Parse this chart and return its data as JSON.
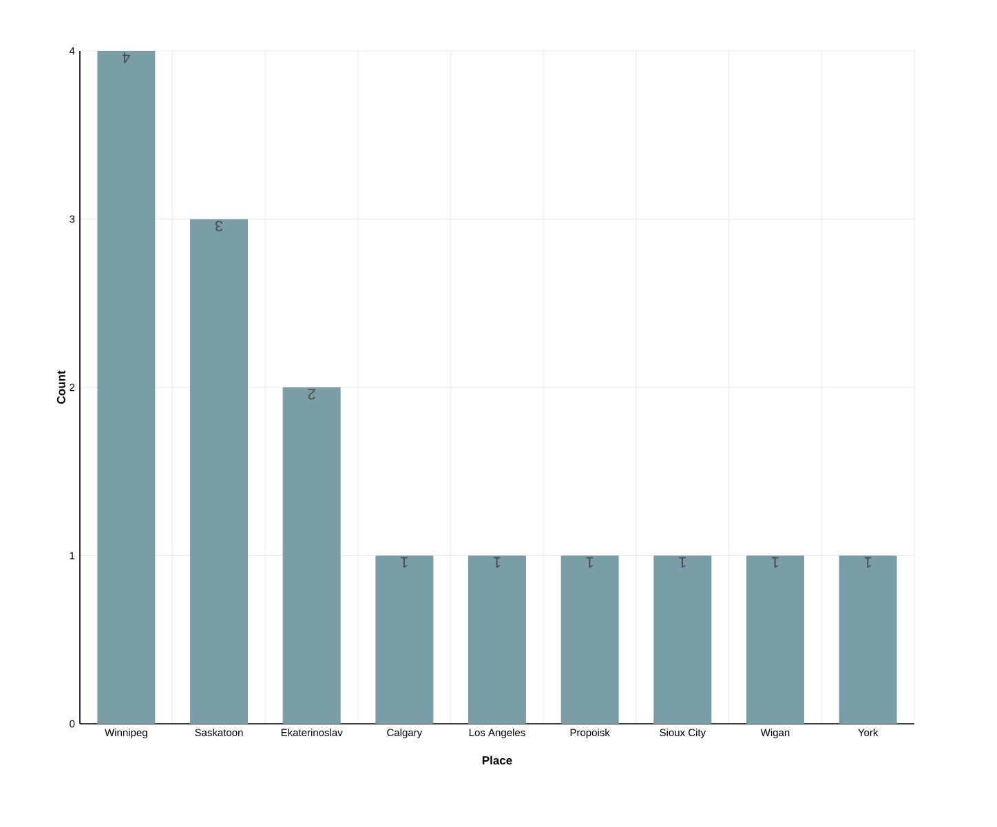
{
  "chart_data": {
    "type": "bar",
    "xlabel": "Place",
    "ylabel": "Count",
    "categories": [
      "Winnipeg",
      "Saskatoon",
      "Ekaterinoslav",
      "Calgary",
      "Los Angeles",
      "Propoisk",
      "Sioux City",
      "Wigan",
      "York"
    ],
    "values": [
      4,
      3,
      2,
      1,
      1,
      1,
      1,
      1,
      1
    ],
    "color": "#7a9ea8",
    "ylim": [
      0,
      4
    ],
    "yticks": [
      0,
      1,
      2,
      3,
      4
    ],
    "grid": true,
    "data_labels": true
  }
}
